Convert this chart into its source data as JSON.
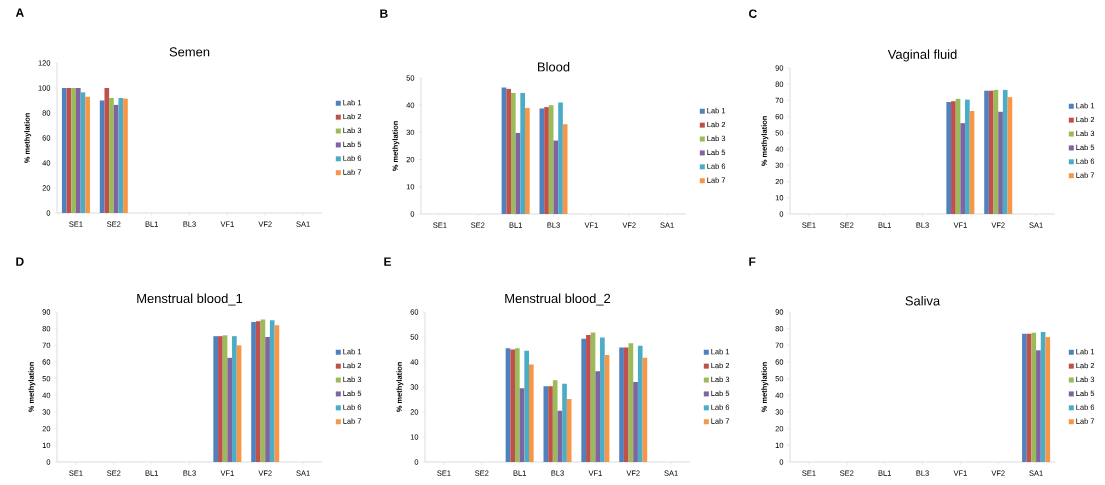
{
  "chart_data": [
    {
      "type": "bar",
      "title": "Semen",
      "ylabel": "% methylation",
      "annotations": [
        "A"
      ],
      "legend": "right",
      "categories": [
        "SE1",
        "SE2",
        "BL1",
        "BL3",
        "VF1",
        "VF2",
        "SA1"
      ],
      "ylim": [
        0,
        120
      ],
      "yticks": [
        0,
        20,
        40,
        60,
        80,
        100,
        120
      ],
      "series": [
        {
          "name": "Lab 1",
          "color": "#4f81bd",
          "values": [
            100,
            90,
            null,
            null,
            null,
            null,
            null
          ]
        },
        {
          "name": "Lab 2",
          "color": "#c0504d",
          "values": [
            100,
            100,
            null,
            null,
            null,
            null,
            null
          ]
        },
        {
          "name": "Lab 3",
          "color": "#9bbb59",
          "values": [
            100,
            92,
            null,
            null,
            null,
            null,
            null
          ]
        },
        {
          "name": "Lab 5",
          "color": "#8064a2",
          "values": [
            100,
            86.5,
            null,
            null,
            null,
            null,
            null
          ]
        },
        {
          "name": "Lab 6",
          "color": "#4bacc6",
          "values": [
            96.5,
            92,
            null,
            null,
            null,
            null,
            null
          ]
        },
        {
          "name": "Lab 7",
          "color": "#f79646",
          "values": [
            93,
            91.5,
            null,
            null,
            null,
            null,
            null
          ]
        }
      ]
    },
    {
      "type": "bar",
      "title": "Blood",
      "ylabel": "% methylation",
      "annotations": [
        "B"
      ],
      "legend": "right",
      "categories": [
        "SE1",
        "SE2",
        "BL1",
        "BL3",
        "VF1",
        "VF2",
        "SA1"
      ],
      "ylim": [
        0,
        50
      ],
      "yticks": [
        0,
        10,
        20,
        30,
        40,
        50
      ],
      "series": [
        {
          "name": "Lab 1",
          "color": "#4f81bd",
          "values": [
            null,
            null,
            46.5,
            38.8,
            null,
            null,
            null
          ]
        },
        {
          "name": "Lab 2",
          "color": "#c0504d",
          "values": [
            null,
            null,
            46,
            39.3,
            null,
            null,
            null
          ]
        },
        {
          "name": "Lab 3",
          "color": "#9bbb59",
          "values": [
            null,
            null,
            44.5,
            40,
            null,
            null,
            null
          ]
        },
        {
          "name": "Lab 5",
          "color": "#8064a2",
          "values": [
            null,
            null,
            29.8,
            27,
            null,
            null,
            null
          ]
        },
        {
          "name": "Lab 6",
          "color": "#4bacc6",
          "values": [
            null,
            null,
            44.5,
            41,
            null,
            null,
            null
          ]
        },
        {
          "name": "Lab 7",
          "color": "#f79646",
          "values": [
            null,
            null,
            39,
            33,
            null,
            null,
            null
          ]
        }
      ]
    },
    {
      "type": "bar",
      "title": "Vaginal fluid",
      "ylabel": "% methylation",
      "annotations": [
        "C"
      ],
      "legend": "right",
      "categories": [
        "SE1",
        "SE2",
        "BL1",
        "BL3",
        "VF1",
        "VF2",
        "SA1"
      ],
      "ylim": [
        0,
        90
      ],
      "yticks": [
        0,
        10,
        20,
        30,
        40,
        50,
        60,
        70,
        80,
        90
      ],
      "series": [
        {
          "name": "Lab 1",
          "color": "#4f81bd",
          "values": [
            null,
            null,
            null,
            null,
            69,
            76,
            null
          ]
        },
        {
          "name": "Lab 2",
          "color": "#c0504d",
          "values": [
            null,
            null,
            null,
            null,
            69.5,
            76,
            null
          ]
        },
        {
          "name": "Lab 3",
          "color": "#9bbb59",
          "values": [
            null,
            null,
            null,
            null,
            71,
            76.5,
            null
          ]
        },
        {
          "name": "Lab 5",
          "color": "#8064a2",
          "values": [
            null,
            null,
            null,
            null,
            56,
            63,
            null
          ]
        },
        {
          "name": "Lab 6",
          "color": "#4bacc6",
          "values": [
            null,
            null,
            null,
            null,
            70.5,
            76.5,
            null
          ]
        },
        {
          "name": "Lab 7",
          "color": "#f79646",
          "values": [
            null,
            null,
            null,
            null,
            63.5,
            72,
            null
          ]
        }
      ]
    },
    {
      "type": "bar",
      "title": "Menstrual blood_1",
      "ylabel": "% methylation",
      "annotations": [
        "D"
      ],
      "legend": "right",
      "categories": [
        "SE1",
        "SE2",
        "BL1",
        "BL3",
        "VF1",
        "VF2",
        "SA1"
      ],
      "ylim": [
        0,
        90
      ],
      "yticks": [
        0,
        10,
        20,
        30,
        40,
        50,
        60,
        70,
        80,
        90
      ],
      "series": [
        {
          "name": "Lab 1",
          "color": "#4f81bd",
          "values": [
            null,
            null,
            null,
            null,
            75.5,
            84,
            null
          ]
        },
        {
          "name": "Lab 2",
          "color": "#c0504d",
          "values": [
            null,
            null,
            null,
            null,
            75.5,
            84.5,
            null
          ]
        },
        {
          "name": "Lab 3",
          "color": "#9bbb59",
          "values": [
            null,
            null,
            null,
            null,
            76,
            85.5,
            null
          ]
        },
        {
          "name": "Lab 5",
          "color": "#8064a2",
          "values": [
            null,
            null,
            null,
            null,
            62.5,
            75,
            null
          ]
        },
        {
          "name": "Lab 6",
          "color": "#4bacc6",
          "values": [
            null,
            null,
            null,
            null,
            75.5,
            85,
            null
          ]
        },
        {
          "name": "Lab 7",
          "color": "#f79646",
          "values": [
            null,
            null,
            null,
            null,
            70,
            82,
            null
          ]
        }
      ]
    },
    {
      "type": "bar",
      "title": "Menstrual blood_2",
      "ylabel": "% methylation",
      "annotations": [
        "E"
      ],
      "legend": "right",
      "categories": [
        "SE1",
        "SE2",
        "BL1",
        "BL3",
        "VF1",
        "VF2",
        "SA1"
      ],
      "ylim": [
        0,
        60
      ],
      "yticks": [
        0,
        10,
        20,
        30,
        40,
        50,
        60
      ],
      "series": [
        {
          "name": "Lab 1",
          "color": "#4f81bd",
          "values": [
            null,
            null,
            45.5,
            30.3,
            49.3,
            45.8,
            null
          ]
        },
        {
          "name": "Lab 2",
          "color": "#c0504d",
          "values": [
            null,
            null,
            45,
            30.3,
            50.8,
            45.8,
            null
          ]
        },
        {
          "name": "Lab 3",
          "color": "#9bbb59",
          "values": [
            null,
            null,
            45.5,
            32.7,
            51.8,
            47.5,
            null
          ]
        },
        {
          "name": "Lab 5",
          "color": "#8064a2",
          "values": [
            null,
            null,
            29.5,
            20.5,
            36.3,
            32,
            null
          ]
        },
        {
          "name": "Lab 6",
          "color": "#4bacc6",
          "values": [
            null,
            null,
            44.5,
            31.3,
            49.8,
            46.5,
            null
          ]
        },
        {
          "name": "Lab 7",
          "color": "#f79646",
          "values": [
            null,
            null,
            39,
            25.2,
            42.8,
            41.7,
            null
          ]
        }
      ]
    },
    {
      "type": "bar",
      "title": "Saliva",
      "ylabel": "% methylation",
      "annotations": [
        "F"
      ],
      "legend": "right",
      "categories": [
        "SE1",
        "SE2",
        "BL1",
        "BL3",
        "VF1",
        "VF2",
        "SA1"
      ],
      "ylim": [
        0,
        90
      ],
      "yticks": [
        0,
        10,
        20,
        30,
        40,
        50,
        60,
        70,
        80,
        90
      ],
      "series": [
        {
          "name": "Lab 1",
          "color": "#4f81bd",
          "values": [
            null,
            null,
            null,
            null,
            null,
            null,
            77
          ]
        },
        {
          "name": "Lab 2",
          "color": "#c0504d",
          "values": [
            null,
            null,
            null,
            null,
            null,
            null,
            77
          ]
        },
        {
          "name": "Lab 3",
          "color": "#9bbb59",
          "values": [
            null,
            null,
            null,
            null,
            null,
            null,
            77.5
          ]
        },
        {
          "name": "Lab 5",
          "color": "#8064a2",
          "values": [
            null,
            null,
            null,
            null,
            null,
            null,
            67
          ]
        },
        {
          "name": "Lab 6",
          "color": "#4bacc6",
          "values": [
            null,
            null,
            null,
            null,
            null,
            null,
            78
          ]
        },
        {
          "name": "Lab 7",
          "color": "#f79646",
          "values": [
            null,
            null,
            null,
            null,
            null,
            null,
            75
          ]
        }
      ]
    }
  ]
}
